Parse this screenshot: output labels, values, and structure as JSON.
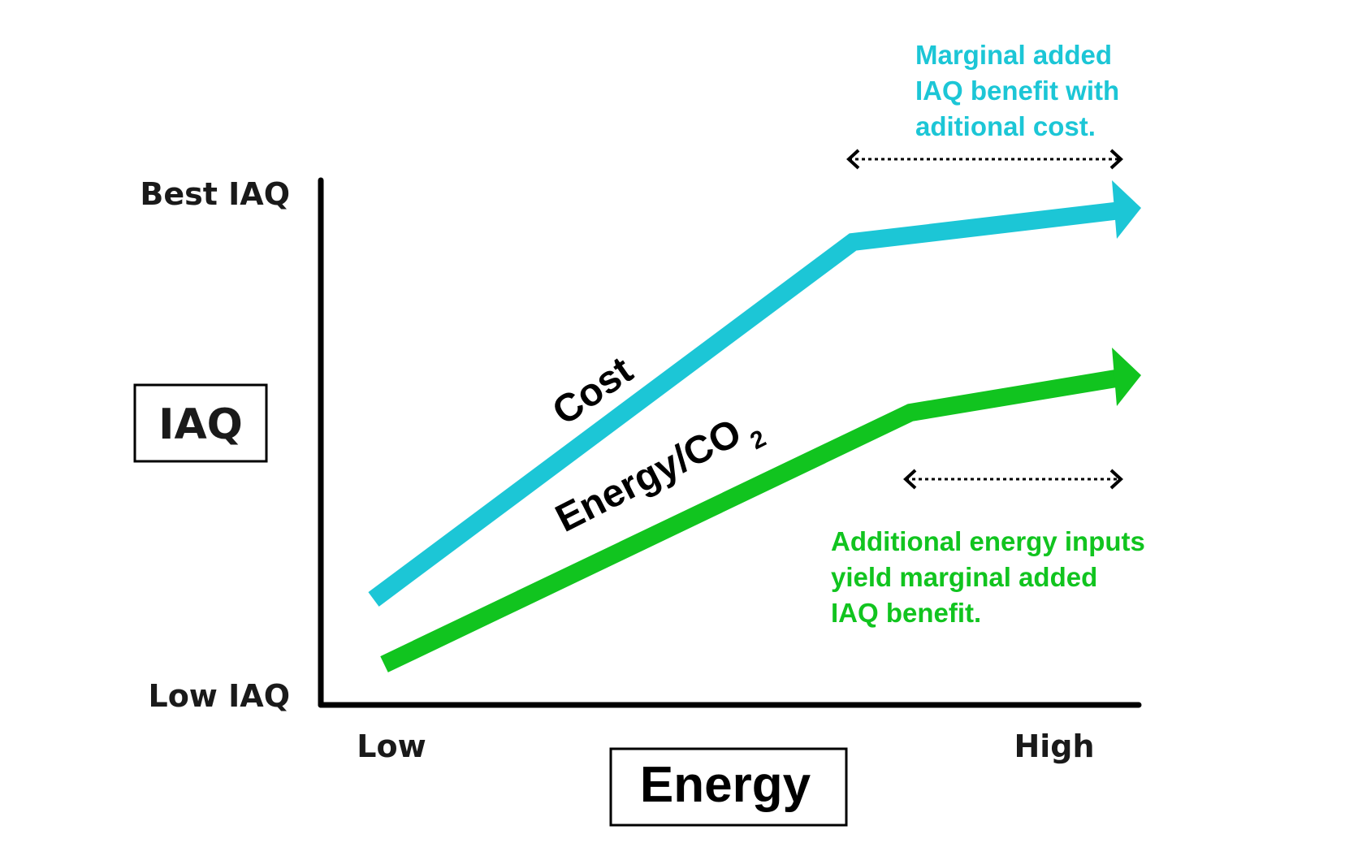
{
  "y_axis": {
    "title": "IAQ",
    "top_label": "Best IAQ",
    "bottom_label": "Low IAQ"
  },
  "x_axis": {
    "title": "Energy",
    "left_label": "Low",
    "right_label": "High"
  },
  "series": {
    "cost": {
      "label": "Cost",
      "color": "#1cc6d6"
    },
    "energy": {
      "label_main": "Energy/CO",
      "label_sub": "2",
      "color": "#11c41f"
    }
  },
  "annotations": {
    "cost_note": {
      "lines": [
        "Marginal added",
        "IAQ benefit with",
        "aditional cost."
      ],
      "color": "#1cc6d6"
    },
    "energy_note": {
      "lines": [
        "Additional energy inputs",
        "yield marginal added",
        "IAQ benefit."
      ],
      "color": "#11c41f"
    }
  },
  "colors": {
    "axis": "#000000",
    "text": "#1a1a1a"
  }
}
